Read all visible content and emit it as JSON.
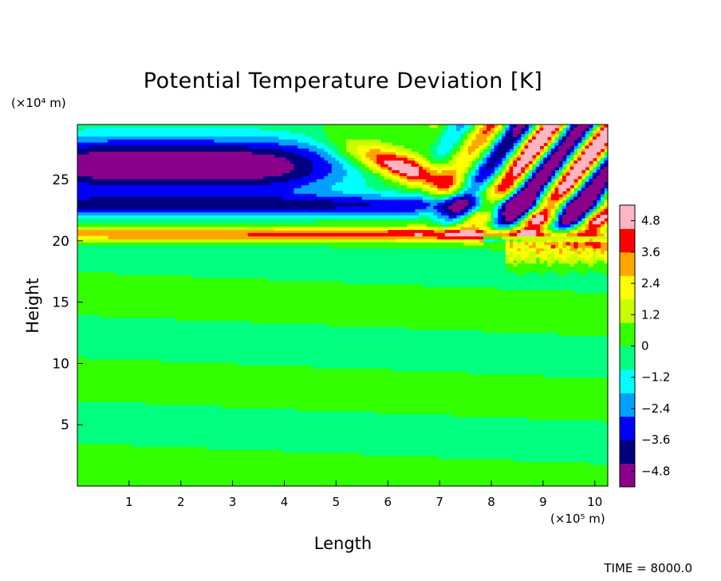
{
  "chart_data": {
    "type": "heatmap",
    "title": "Potential Temperature Deviation [K]",
    "xlabel": "Length",
    "ylabel": "Height",
    "x_unit_label": "(×10⁵ m)",
    "y_unit_label": "(×10⁴ m)",
    "xlim": [
      0,
      10.25
    ],
    "ylim": [
      0,
      29.5
    ],
    "x_ticks": [
      1,
      2,
      3,
      4,
      5,
      6,
      7,
      8,
      9,
      10
    ],
    "y_ticks": [
      5,
      10,
      15,
      20,
      25
    ],
    "colorbar": {
      "range": [
        -5.4,
        5.4
      ],
      "ticks": [
        -4.8,
        -3.6,
        -2.4,
        -1.2,
        0,
        1.2,
        2.4,
        3.6,
        4.8
      ],
      "tick_labels": [
        "−4.8",
        "−3.6",
        "−2.4",
        "−1.2",
        "0",
        "1.2",
        "2.4",
        "3.6",
        "4.8"
      ],
      "colors": [
        "#8b008b",
        "#000080",
        "#0000ff",
        "#00a0ff",
        "#00ffff",
        "#00ff7f",
        "#32ff00",
        "#c8ff00",
        "#ffff00",
        "#ffa500",
        "#ff0000",
        "#ffb6c1"
      ]
    },
    "features": [
      "Uniform near-zero deviation (green) below about 20 km",
      "Warm band (red/pink, about +3 to +5 K) at about 20-21 km, tilting down to the right",
      "Cold bands (blue/purple, about -3 to -5 K) at about 22-29 km",
      "Oblique warm and cold wave bands from about 6 to 10.25 x10^5 m above about 20 km",
      "Turbulent warm patch near x about 8.5-10 x10^5 m at about 17-20 km"
    ],
    "time_label": "TIME = 8000.0"
  }
}
